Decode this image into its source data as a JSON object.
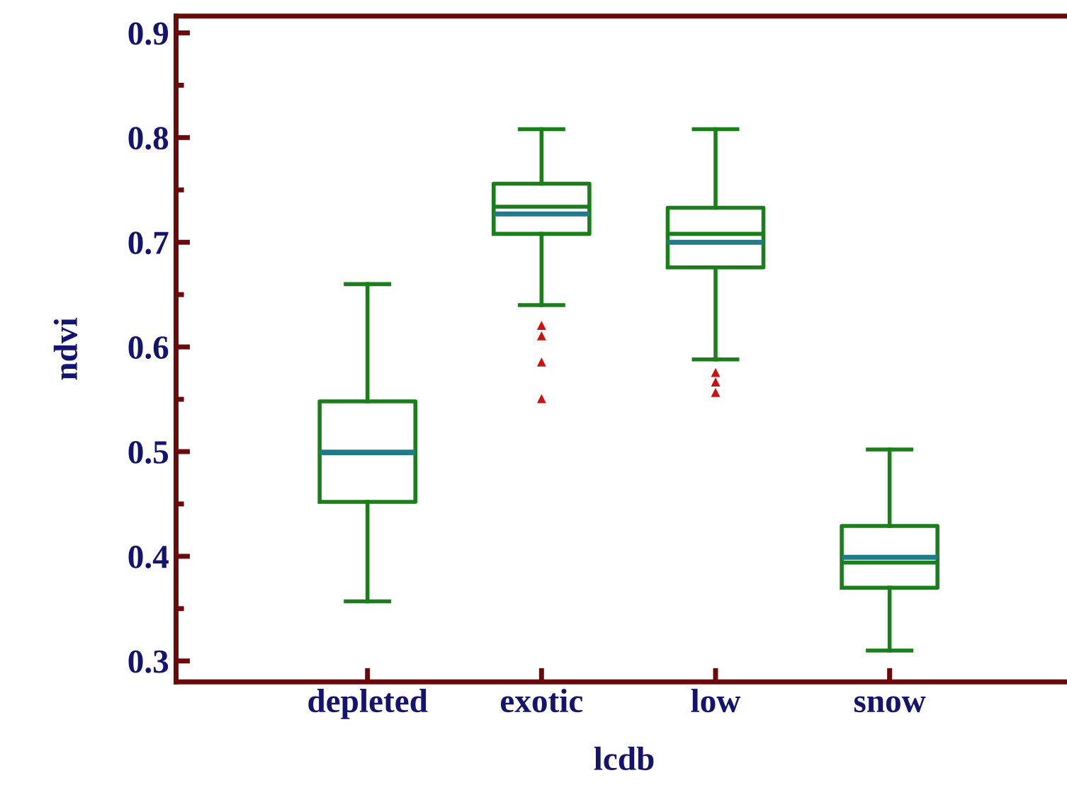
{
  "chart_data": {
    "type": "box",
    "xlabel": "lcdb",
    "ylabel": "ndvi",
    "categories": [
      "depleted",
      "exotic",
      "low",
      "snow"
    ],
    "series": [
      {
        "color": "#1a7f1a",
        "boxes": [
          {
            "low": 0.357,
            "q1": 0.452,
            "median": 0.5,
            "q3": 0.548,
            "high": 0.66,
            "mean": 0.499
          },
          {
            "low": 0.64,
            "q1": 0.708,
            "median": 0.734,
            "q3": 0.756,
            "high": 0.808,
            "mean": 0.727,
            "outliers": [
              0.62,
              0.61,
              0.585,
              0.55
            ]
          },
          {
            "low": 0.588,
            "q1": 0.676,
            "median": 0.708,
            "q3": 0.733,
            "high": 0.808,
            "mean": 0.7,
            "outliers": [
              0.575,
              0.566,
              0.556
            ]
          },
          {
            "low": 0.31,
            "q1": 0.37,
            "median": 0.394,
            "q3": 0.429,
            "high": 0.502,
            "mean": 0.399
          }
        ]
      }
    ],
    "ylim": [
      0.28,
      0.916
    ],
    "yticks": [
      0.3,
      {
        "value": 0.35,
        "label": null
      },
      0.4,
      {
        "value": 0.45,
        "label": null
      },
      0.5,
      {
        "value": 0.55,
        "label": null
      },
      0.6,
      {
        "value": 0.65,
        "label": null
      },
      0.7,
      {
        "value": 0.75,
        "label": null
      },
      0.8,
      {
        "value": 0.85,
        "label": null
      },
      0.9
    ],
    "grid": false,
    "legend": false
  }
}
